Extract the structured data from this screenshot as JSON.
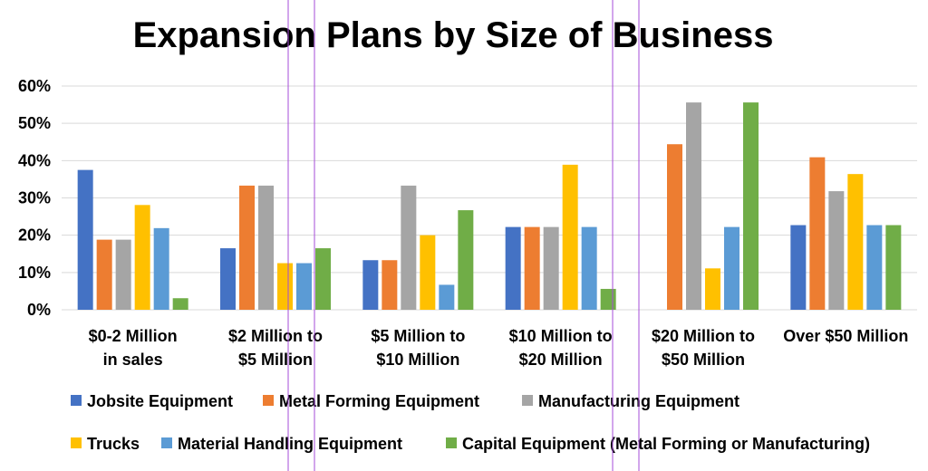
{
  "chart_data": {
    "type": "bar",
    "title": "Expansion Plans by Size of Business",
    "ylim": [
      0,
      60
    ],
    "yticks": [
      "0%",
      "10%",
      "20%",
      "30%",
      "40%",
      "50%",
      "60%"
    ],
    "categories": [
      [
        "$0-2 Million",
        "in sales"
      ],
      [
        "$2 Million to",
        "$5 Million"
      ],
      [
        "$5 Million to",
        "$10 Million"
      ],
      [
        "$10 Million to",
        "$20 Million"
      ],
      [
        "$20 Million to",
        "$50 Million"
      ],
      [
        "Over $50 Million"
      ]
    ],
    "series": [
      {
        "name": "Jobsite Equipment",
        "color": "#4472c4",
        "values": [
          37.5,
          16.5,
          13.3,
          22.2,
          null,
          22.7
        ]
      },
      {
        "name": "Metal Forming Equipment",
        "color": "#ed7d31",
        "values": [
          18.8,
          33.3,
          13.3,
          22.2,
          44.4,
          40.9
        ]
      },
      {
        "name": "Manufacturing Equipment",
        "color": "#a5a5a5",
        "values": [
          18.8,
          33.3,
          33.3,
          22.2,
          55.6,
          31.8
        ]
      },
      {
        "name": "Trucks",
        "color": "#ffc000",
        "values": [
          28.1,
          12.5,
          20.0,
          38.9,
          11.1,
          36.4
        ]
      },
      {
        "name": "Material Handling Equipment",
        "color": "#5b9bd5",
        "values": [
          21.9,
          12.5,
          6.7,
          22.2,
          22.2,
          22.7
        ]
      },
      {
        "name": "Capital Equipment (Metal Forming or Manufacturing)",
        "color": "#70ad47",
        "values": [
          3.1,
          16.5,
          26.7,
          5.6,
          55.6,
          22.7
        ]
      }
    ],
    "grid": true,
    "legend_position": "bottom"
  }
}
